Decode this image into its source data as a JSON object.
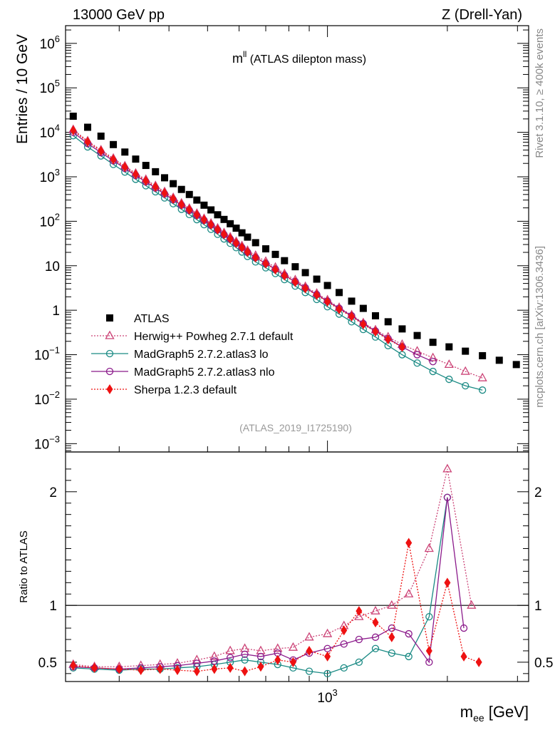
{
  "header": {
    "left": "13000 GeV pp",
    "right": "Z (Drell-Yan)"
  },
  "side_labels": {
    "rivet": "Rivet 3.1.10, ≥ 400k events",
    "mcplots": "mcplots.cern.ch [arXiv:1306.3436]"
  },
  "chart_data": [
    {
      "type": "scatter",
      "title": "m^ll (ATLAS dilepton mass)",
      "title_main": "m",
      "title_sup": "ll",
      "title_rest": " (ATLAS dilepton mass)",
      "analysis_id": "(ATLAS_2019_I1725190)",
      "ylabel": "Entries / 10 GeV",
      "yscale": "log",
      "ylim": [
        0.00065,
        2500000
      ],
      "y_ticks": [
        {
          "value": 0.001,
          "base": "10",
          "exp": "−3"
        },
        {
          "value": 0.01,
          "base": "10",
          "exp": "−2"
        },
        {
          "value": 0.1,
          "base": "10",
          "exp": "−1"
        },
        {
          "value": 1,
          "base": "1",
          "exp": ""
        },
        {
          "value": 10,
          "base": "10",
          "exp": ""
        },
        {
          "value": 100,
          "base": "10",
          "exp": "2"
        },
        {
          "value": 1000,
          "base": "10",
          "exp": "3"
        },
        {
          "value": 10000,
          "base": "10",
          "exp": "4"
        },
        {
          "value": 100000,
          "base": "10",
          "exp": "5"
        },
        {
          "value": 1000000,
          "base": "10",
          "exp": "6"
        }
      ],
      "legend": [
        {
          "name": "ATLAS",
          "color": "#000000",
          "marker": "square",
          "line": "none"
        },
        {
          "name": "Herwig++ Powheg 2.7.1 default",
          "color": "#cc4477",
          "marker": "triangle-open",
          "line": "dotted"
        },
        {
          "name": "MadGraph5 2.7.2.atlas3 lo",
          "color": "#1a8a84",
          "marker": "circle-open",
          "line": "solid"
        },
        {
          "name": "MadGraph5 2.7.2.atlas3 nlo",
          "color": "#8b1a8b",
          "marker": "circle-open",
          "line": "solid"
        },
        {
          "name": "Sherpa 1.2.3 default",
          "color": "#ee1111",
          "marker": "diamond",
          "line": "dotted"
        }
      ],
      "atlas_points": [
        [
          230,
          23000
        ],
        [
          250,
          13000
        ],
        [
          270,
          8200
        ],
        [
          290,
          5300
        ],
        [
          310,
          3600
        ],
        [
          330,
          2500
        ],
        [
          350,
          1800
        ],
        [
          370,
          1300
        ],
        [
          390,
          950
        ],
        [
          410,
          700
        ],
        [
          430,
          520
        ],
        [
          450,
          400
        ],
        [
          470,
          300
        ],
        [
          490,
          230
        ],
        [
          510,
          180
        ],
        [
          530,
          140
        ],
        [
          550,
          110
        ],
        [
          570,
          88
        ],
        [
          590,
          70
        ],
        [
          610,
          55
        ],
        [
          630,
          44
        ],
        [
          660,
          33
        ],
        [
          700,
          24
        ],
        [
          740,
          18
        ],
        [
          780,
          13
        ],
        [
          830,
          9.5
        ],
        [
          880,
          7
        ],
        [
          940,
          5
        ],
        [
          1000,
          3.6
        ],
        [
          1070,
          2.5
        ],
        [
          1150,
          1.6
        ],
        [
          1230,
          1.1
        ],
        [
          1320,
          0.75
        ],
        [
          1420,
          0.55
        ],
        [
          1540,
          0.38
        ],
        [
          1680,
          0.27
        ],
        [
          1840,
          0.19
        ],
        [
          2020,
          0.15
        ],
        [
          2220,
          0.12
        ],
        [
          2450,
          0.095
        ],
        [
          2700,
          0.075
        ],
        [
          2980,
          0.06
        ]
      ],
      "mc_series": [
        {
          "name": "Herwig++ Powheg 2.7.1 default",
          "color": "#cc4477",
          "points": [
            [
              230,
              11500
            ],
            [
              250,
              6400
            ],
            [
              270,
              4000
            ],
            [
              290,
              2600
            ],
            [
              310,
              1750
            ],
            [
              330,
              1200
            ],
            [
              350,
              870
            ],
            [
              370,
              630
            ],
            [
              390,
              460
            ],
            [
              410,
              340
            ],
            [
              430,
              255
            ],
            [
              450,
              195
            ],
            [
              470,
              150
            ],
            [
              490,
              115
            ],
            [
              510,
              90
            ],
            [
              530,
              70
            ],
            [
              550,
              55
            ],
            [
              570,
              44
            ],
            [
              590,
              35
            ],
            [
              610,
              28
            ],
            [
              630,
              22
            ],
            [
              660,
              17
            ],
            [
              700,
              12.5
            ],
            [
              740,
              9.2
            ],
            [
              780,
              6.6
            ],
            [
              830,
              4.8
            ],
            [
              880,
              3.4
            ],
            [
              940,
              2.4
            ],
            [
              1000,
              1.7
            ],
            [
              1070,
              1.15
            ],
            [
              1150,
              0.78
            ],
            [
              1230,
              0.52
            ],
            [
              1320,
              0.36
            ],
            [
              1420,
              0.25
            ],
            [
              1540,
              0.17
            ],
            [
              1680,
              0.12
            ],
            [
              1840,
              0.085
            ],
            [
              2020,
              0.06
            ],
            [
              2220,
              0.042
            ],
            [
              2450,
              0.03
            ]
          ]
        },
        {
          "name": "MadGraph5 2.7.2.atlas3 lo",
          "color": "#1a8a84",
          "points": [
            [
              230,
              8400
            ],
            [
              250,
              4700
            ],
            [
              270,
              2950
            ],
            [
              290,
              1900
            ],
            [
              310,
              1280
            ],
            [
              330,
              880
            ],
            [
              350,
              630
            ],
            [
              370,
              460
            ],
            [
              390,
              335
            ],
            [
              410,
              248
            ],
            [
              430,
              186
            ],
            [
              450,
              142
            ],
            [
              470,
              109
            ],
            [
              490,
              84
            ],
            [
              510,
              66
            ],
            [
              530,
              51
            ],
            [
              550,
              40
            ],
            [
              570,
              32
            ],
            [
              590,
              25.5
            ],
            [
              610,
              20.4
            ],
            [
              630,
              16.2
            ],
            [
              660,
              12.2
            ],
            [
              700,
              9
            ],
            [
              740,
              6.7
            ],
            [
              780,
              4.9
            ],
            [
              830,
              3.5
            ],
            [
              880,
              2.5
            ],
            [
              940,
              1.75
            ],
            [
              1000,
              1.2
            ],
            [
              1070,
              0.82
            ],
            [
              1150,
              0.55
            ],
            [
              1230,
              0.37
            ],
            [
              1320,
              0.25
            ],
            [
              1420,
              0.16
            ],
            [
              1540,
              0.1
            ],
            [
              1680,
              0.065
            ],
            [
              1840,
              0.042
            ],
            [
              2020,
              0.028
            ],
            [
              2220,
              0.02
            ],
            [
              2450,
              0.016
            ]
          ]
        },
        {
          "name": "MadGraph5 2.7.2.atlas3 nlo",
          "color": "#8b1a8b",
          "points": [
            [
              230,
              10000
            ],
            [
              250,
              5600
            ],
            [
              270,
              3500
            ],
            [
              290,
              2300
            ],
            [
              310,
              1550
            ],
            [
              330,
              1070
            ],
            [
              350,
              770
            ],
            [
              370,
              560
            ],
            [
              390,
              410
            ],
            [
              410,
              305
            ],
            [
              430,
              230
            ],
            [
              450,
              176
            ],
            [
              470,
              136
            ],
            [
              490,
              105
            ],
            [
              510,
              82
            ],
            [
              530,
              64
            ],
            [
              550,
              50
            ],
            [
              570,
              40
            ],
            [
              590,
              32
            ],
            [
              610,
              25.5
            ],
            [
              630,
              20.2
            ],
            [
              660,
              15.3
            ],
            [
              700,
              11.3
            ],
            [
              740,
              8.4
            ],
            [
              780,
              6.1
            ],
            [
              830,
              4.4
            ],
            [
              880,
              3.2
            ],
            [
              940,
              2.25
            ],
            [
              1000,
              1.6
            ],
            [
              1070,
              1.1
            ],
            [
              1150,
              0.75
            ],
            [
              1230,
              0.5
            ],
            [
              1320,
              0.34
            ],
            [
              1420,
              0.23
            ],
            [
              1540,
              0.15
            ],
            [
              1680,
              0.1
            ],
            [
              1840,
              0.07
            ]
          ]
        },
        {
          "name": "Sherpa 1.2.3 default",
          "color": "#ee1111",
          "points": [
            [
              230,
              11000
            ],
            [
              250,
              6100
            ],
            [
              270,
              3800
            ],
            [
              290,
              2450
            ],
            [
              310,
              1650
            ],
            [
              330,
              1130
            ],
            [
              350,
              810
            ],
            [
              370,
              590
            ],
            [
              390,
              430
            ],
            [
              410,
              318
            ],
            [
              430,
              238
            ],
            [
              450,
              182
            ],
            [
              470,
              140
            ],
            [
              490,
              108
            ],
            [
              510,
              84
            ],
            [
              530,
              65
            ],
            [
              550,
              51
            ],
            [
              570,
              40.5
            ],
            [
              590,
              32.3
            ],
            [
              610,
              25.8
            ],
            [
              630,
              20.4
            ],
            [
              660,
              15.3
            ],
            [
              700,
              11.2
            ],
            [
              740,
              8.2
            ],
            [
              780,
              6
            ],
            [
              830,
              4.3
            ],
            [
              880,
              3.1
            ],
            [
              940,
              2.2
            ],
            [
              1000,
              1.55
            ],
            [
              1070,
              1.05
            ],
            [
              1150,
              0.72
            ],
            [
              1230,
              0.48
            ],
            [
              1320,
              0.33
            ],
            [
              1420,
              0.22
            ],
            [
              1540,
              0.15
            ]
          ]
        }
      ]
    },
    {
      "type": "line",
      "ylabel": "Ratio to ATLAS",
      "ylim": [
        0.33,
        2.35
      ],
      "y_ticks": [
        "0.5",
        "1",
        "2"
      ],
      "y_tick_values": [
        0.5,
        1,
        2
      ],
      "xlabel": "m_ee [GeV]",
      "xlabel_main": "m",
      "xlabel_sub": "ee",
      "xlabel_unit": " [GeV]",
      "xscale": "log",
      "xlim": [
        220,
        3200
      ],
      "x_ticks": [
        {
          "value": 1000,
          "base": "10",
          "exp": "3"
        }
      ],
      "ratio_series": [
        {
          "name": "Herwig++ Powheg 2.7.1 default",
          "color": "#cc4477",
          "x": [
            230,
            260,
            300,
            340,
            380,
            420,
            470,
            520,
            570,
            620,
            680,
            750,
            820,
            900,
            1000,
            1100,
            1200,
            1320,
            1450,
            1600,
            1800,
            2000,
            2300
          ],
          "y": [
            0.48,
            0.46,
            0.46,
            0.47,
            0.48,
            0.49,
            0.52,
            0.55,
            0.6,
            0.62,
            0.6,
            0.62,
            0.63,
            0.72,
            0.75,
            0.82,
            0.9,
            0.95,
            1.0,
            1.1,
            1.5,
            2.2,
            1.0
          ]
        },
        {
          "name": "MadGraph5 2.7.2.atlas3 lo",
          "color": "#1a8a84",
          "x": [
            230,
            260,
            300,
            340,
            380,
            420,
            470,
            520,
            570,
            620,
            680,
            750,
            820,
            900,
            1000,
            1100,
            1200,
            1320,
            1450,
            1600,
            1800,
            2000
          ],
          "y": [
            0.45,
            0.44,
            0.43,
            0.44,
            0.44,
            0.45,
            0.46,
            0.48,
            0.5,
            0.52,
            0.5,
            0.48,
            0.45,
            0.42,
            0.4,
            0.45,
            0.5,
            0.62,
            0.58,
            0.55,
            0.9,
            1.95
          ]
        },
        {
          "name": "MadGraph5 2.7.2.atlas3 nlo",
          "color": "#8b1a8b",
          "x": [
            230,
            260,
            300,
            340,
            380,
            420,
            470,
            520,
            570,
            620,
            680,
            750,
            820,
            900,
            1000,
            1100,
            1200,
            1320,
            1450,
            1600,
            1800,
            2000,
            2200
          ],
          "y": [
            0.46,
            0.45,
            0.44,
            0.45,
            0.46,
            0.47,
            0.49,
            0.51,
            0.54,
            0.57,
            0.55,
            0.58,
            0.52,
            0.58,
            0.62,
            0.66,
            0.7,
            0.72,
            0.8,
            0.75,
            0.5,
            1.95,
            0.8
          ]
        },
        {
          "name": "Sherpa 1.2.3 default",
          "color": "#ee1111",
          "x": [
            230,
            260,
            300,
            340,
            380,
            420,
            470,
            520,
            570,
            620,
            680,
            750,
            820,
            900,
            1000,
            1100,
            1200,
            1320,
            1450,
            1600,
            1800,
            2000,
            2200,
            2400
          ],
          "y": [
            0.47,
            0.45,
            0.44,
            0.43,
            0.44,
            0.43,
            0.42,
            0.44,
            0.45,
            0.42,
            0.46,
            0.52,
            0.5,
            0.6,
            0.55,
            0.78,
            0.95,
            0.85,
            0.72,
            1.55,
            0.6,
            1.2,
            0.55,
            0.5
          ]
        }
      ]
    }
  ]
}
